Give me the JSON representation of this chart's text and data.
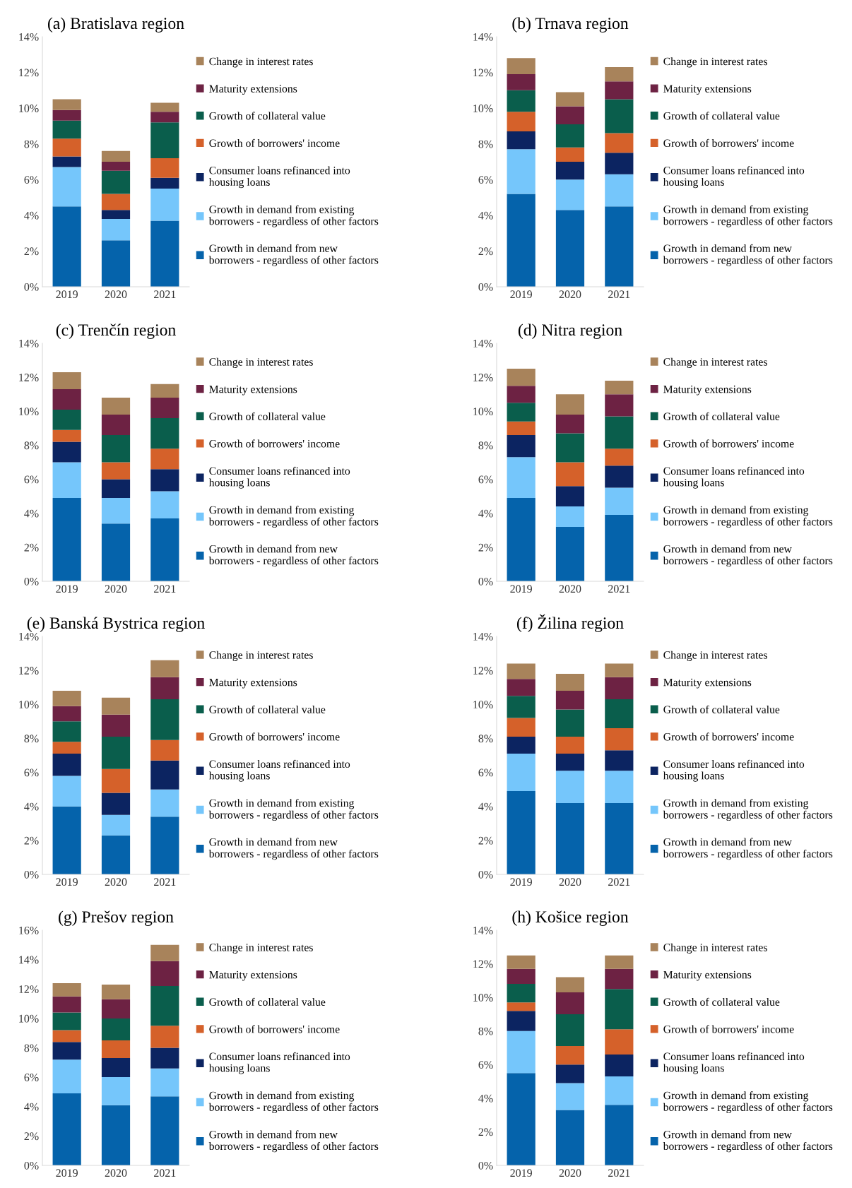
{
  "chart_data": [
    {
      "type": "bar",
      "stacked": true,
      "title": "(a) Bratislava region",
      "categories": [
        "2019",
        "2020",
        "2021"
      ],
      "ylim": [
        0,
        14
      ],
      "yticks": [
        {
          "value": 0,
          "label": "0%"
        },
        {
          "value": 2,
          "label": "2%"
        },
        {
          "value": 4,
          "label": "4%"
        },
        {
          "value": 6,
          "label": "6%"
        },
        {
          "value": 8,
          "label": "8%"
        },
        {
          "value": 10,
          "label": "10%"
        },
        {
          "value": 12,
          "label": "12%"
        },
        {
          "value": 14,
          "label": "14%"
        }
      ],
      "legend": "right",
      "grid": false,
      "series": [
        {
          "name": "Growth in demand from new\nborrowers - regardless of other factors",
          "color": "#0563ab",
          "values": [
            4.5,
            2.6,
            3.7
          ]
        },
        {
          "name": "Growth in demand from existing\nborrowers - regardless of other factors",
          "color": "#75c6fb",
          "values": [
            2.2,
            1.2,
            1.8
          ]
        },
        {
          "name": "Consumer loans refinanced into\nhousing loans",
          "color": "#0c2461",
          "values": [
            0.6,
            0.5,
            0.6
          ]
        },
        {
          "name": "Growth of borrowers' income",
          "color": "#d5612a",
          "values": [
            1.0,
            0.9,
            1.1
          ]
        },
        {
          "name": "Growth of collateral value",
          "color": "#0a5e4c",
          "values": [
            1.0,
            1.3,
            2.0
          ]
        },
        {
          "name": "Maturity extensions",
          "color": "#6d2243",
          "values": [
            0.6,
            0.5,
            0.6
          ]
        },
        {
          "name": "Change in interest rates",
          "color": "#a8835b",
          "values": [
            0.6,
            0.6,
            0.5
          ]
        }
      ]
    },
    {
      "type": "bar",
      "stacked": true,
      "title": "(b) Trnava region",
      "categories": [
        "2019",
        "2020",
        "2021"
      ],
      "ylim": [
        0,
        14
      ],
      "yticks": [
        {
          "value": 0,
          "label": "0%"
        },
        {
          "value": 2,
          "label": "2%"
        },
        {
          "value": 4,
          "label": "4%"
        },
        {
          "value": 6,
          "label": "6%"
        },
        {
          "value": 8,
          "label": "8%"
        },
        {
          "value": 10,
          "label": "10%"
        },
        {
          "value": 12,
          "label": "12%"
        },
        {
          "value": 14,
          "label": "14%"
        }
      ],
      "legend": "right",
      "grid": false,
      "series": [
        {
          "name": "Growth in demand from new\nborrowers - regardless of other factors",
          "color": "#0563ab",
          "values": [
            5.2,
            4.3,
            4.5
          ]
        },
        {
          "name": "Growth in demand from existing\nborrowers - regardless of other factors",
          "color": "#75c6fb",
          "values": [
            2.5,
            1.7,
            1.8
          ]
        },
        {
          "name": "Consumer loans refinanced into\nhousing loans",
          "color": "#0c2461",
          "values": [
            1.0,
            1.0,
            1.2
          ]
        },
        {
          "name": "Growth of borrowers' income",
          "color": "#d5612a",
          "values": [
            1.1,
            0.8,
            1.1
          ]
        },
        {
          "name": "Growth of collateral value",
          "color": "#0a5e4c",
          "values": [
            1.2,
            1.3,
            1.9
          ]
        },
        {
          "name": "Maturity extensions",
          "color": "#6d2243",
          "values": [
            0.9,
            1.0,
            1.0
          ]
        },
        {
          "name": "Change in interest rates",
          "color": "#a8835b",
          "values": [
            0.9,
            0.8,
            0.8
          ]
        }
      ]
    },
    {
      "type": "bar",
      "stacked": true,
      "title": "(c) Trenčín region",
      "categories": [
        "2019",
        "2020",
        "2021"
      ],
      "ylim": [
        0,
        14
      ],
      "yticks": [
        {
          "value": 0,
          "label": "0%"
        },
        {
          "value": 2,
          "label": "2%"
        },
        {
          "value": 4,
          "label": "4%"
        },
        {
          "value": 6,
          "label": "6%"
        },
        {
          "value": 8,
          "label": "8%"
        },
        {
          "value": 10,
          "label": "10%"
        },
        {
          "value": 12,
          "label": "12%"
        },
        {
          "value": 14,
          "label": "14%"
        }
      ],
      "legend": "right",
      "grid": false,
      "series": [
        {
          "name": "Growth in demand from new\nborrowers - regardless of other factors",
          "color": "#0563ab",
          "values": [
            4.9,
            3.4,
            3.7
          ]
        },
        {
          "name": "Growth in demand from existing\nborrowers - regardless of other factors",
          "color": "#75c6fb",
          "values": [
            2.1,
            1.5,
            1.6
          ]
        },
        {
          "name": "Consumer loans refinanced into\nhousing loans",
          "color": "#0c2461",
          "values": [
            1.2,
            1.1,
            1.3
          ]
        },
        {
          "name": "Growth of borrowers' income",
          "color": "#d5612a",
          "values": [
            0.7,
            1.0,
            1.2
          ]
        },
        {
          "name": "Growth of collateral value",
          "color": "#0a5e4c",
          "values": [
            1.2,
            1.6,
            1.8
          ]
        },
        {
          "name": "Maturity extensions",
          "color": "#6d2243",
          "values": [
            1.2,
            1.2,
            1.2
          ]
        },
        {
          "name": "Change in interest rates",
          "color": "#a8835b",
          "values": [
            1.0,
            1.0,
            0.8
          ]
        }
      ]
    },
    {
      "type": "bar",
      "stacked": true,
      "title": "(d) Nitra region",
      "categories": [
        "2019",
        "2020",
        "2021"
      ],
      "ylim": [
        0,
        14
      ],
      "yticks": [
        {
          "value": 0,
          "label": "0%"
        },
        {
          "value": 2,
          "label": "2%"
        },
        {
          "value": 4,
          "label": "4%"
        },
        {
          "value": 6,
          "label": "6%"
        },
        {
          "value": 8,
          "label": "8%"
        },
        {
          "value": 10,
          "label": "10%"
        },
        {
          "value": 12,
          "label": "12%"
        },
        {
          "value": 14,
          "label": "14%"
        }
      ],
      "legend": "right",
      "grid": false,
      "series": [
        {
          "name": "Growth in demand from new\nborrowers - regardless of other factors",
          "color": "#0563ab",
          "values": [
            4.9,
            3.2,
            3.9
          ]
        },
        {
          "name": "Growth in demand from existing\nborrowers - regardless of other factors",
          "color": "#75c6fb",
          "values": [
            2.4,
            1.2,
            1.6
          ]
        },
        {
          "name": "Consumer loans refinanced into\nhousing loans",
          "color": "#0c2461",
          "values": [
            1.3,
            1.2,
            1.3
          ]
        },
        {
          "name": "Growth of borrowers' income",
          "color": "#d5612a",
          "values": [
            0.8,
            1.4,
            1.0
          ]
        },
        {
          "name": "Growth of collateral value",
          "color": "#0a5e4c",
          "values": [
            1.1,
            1.7,
            1.9
          ]
        },
        {
          "name": "Maturity extensions",
          "color": "#6d2243",
          "values": [
            1.0,
            1.1,
            1.3
          ]
        },
        {
          "name": "Change in interest rates",
          "color": "#a8835b",
          "values": [
            1.0,
            1.2,
            0.8
          ]
        }
      ]
    },
    {
      "type": "bar",
      "stacked": true,
      "title": "(e) Banská Bystrica region",
      "categories": [
        "2019",
        "2020",
        "2021"
      ],
      "ylim": [
        0,
        14
      ],
      "yticks": [
        {
          "value": 0,
          "label": "0%"
        },
        {
          "value": 2,
          "label": "2%"
        },
        {
          "value": 4,
          "label": "4%"
        },
        {
          "value": 6,
          "label": "6%"
        },
        {
          "value": 8,
          "label": "8%"
        },
        {
          "value": 10,
          "label": "10%"
        },
        {
          "value": 12,
          "label": "12%"
        },
        {
          "value": 14,
          "label": "14%"
        }
      ],
      "legend": "right",
      "grid": false,
      "series": [
        {
          "name": "Growth in demand from new\nborrowers - regardless of other factors",
          "color": "#0563ab",
          "values": [
            4.0,
            2.3,
            3.4
          ]
        },
        {
          "name": "Growth in demand from existing\nborrowers - regardless of other factors",
          "color": "#75c6fb",
          "values": [
            1.8,
            1.2,
            1.6
          ]
        },
        {
          "name": "Consumer loans refinanced into\nhousing loans",
          "color": "#0c2461",
          "values": [
            1.3,
            1.3,
            1.7
          ]
        },
        {
          "name": "Growth of borrowers' income",
          "color": "#d5612a",
          "values": [
            0.7,
            1.4,
            1.2
          ]
        },
        {
          "name": "Growth of collateral value",
          "color": "#0a5e4c",
          "values": [
            1.2,
            1.9,
            2.4
          ]
        },
        {
          "name": "Maturity extensions",
          "color": "#6d2243",
          "values": [
            0.9,
            1.3,
            1.3
          ]
        },
        {
          "name": "Change in interest rates",
          "color": "#a8835b",
          "values": [
            0.9,
            1.0,
            1.0
          ]
        }
      ]
    },
    {
      "type": "bar",
      "stacked": true,
      "title": "(f) Žilina region",
      "categories": [
        "2019",
        "2020",
        "2021"
      ],
      "ylim": [
        0,
        14
      ],
      "yticks": [
        {
          "value": 0,
          "label": "0%"
        },
        {
          "value": 2,
          "label": "2%"
        },
        {
          "value": 4,
          "label": "4%"
        },
        {
          "value": 6,
          "label": "6%"
        },
        {
          "value": 8,
          "label": "8%"
        },
        {
          "value": 10,
          "label": "10%"
        },
        {
          "value": 12,
          "label": "12%"
        },
        {
          "value": 14,
          "label": "14%"
        }
      ],
      "legend": "right",
      "grid": false,
      "series": [
        {
          "name": "Growth in demand from new\nborrowers - regardless of other factors",
          "color": "#0563ab",
          "values": [
            4.9,
            4.2,
            4.2
          ]
        },
        {
          "name": "Growth in demand from existing\nborrowers - regardless of other factors",
          "color": "#75c6fb",
          "values": [
            2.2,
            1.9,
            1.9
          ]
        },
        {
          "name": "Consumer loans refinanced into\nhousing loans",
          "color": "#0c2461",
          "values": [
            1.0,
            1.0,
            1.2
          ]
        },
        {
          "name": "Growth of borrowers' income",
          "color": "#d5612a",
          "values": [
            1.1,
            1.0,
            1.3
          ]
        },
        {
          "name": "Growth of collateral value",
          "color": "#0a5e4c",
          "values": [
            1.3,
            1.6,
            1.7
          ]
        },
        {
          "name": "Maturity extensions",
          "color": "#6d2243",
          "values": [
            1.0,
            1.1,
            1.3
          ]
        },
        {
          "name": "Change in interest rates",
          "color": "#a8835b",
          "values": [
            0.9,
            1.0,
            0.8
          ]
        }
      ]
    },
    {
      "type": "bar",
      "stacked": true,
      "title": "(g) Prešov region",
      "categories": [
        "2019",
        "2020",
        "2021"
      ],
      "ylim": [
        0,
        16
      ],
      "yticks": [
        {
          "value": 0,
          "label": "0%"
        },
        {
          "value": 2,
          "label": "2%"
        },
        {
          "value": 4,
          "label": "4%"
        },
        {
          "value": 6,
          "label": "6%"
        },
        {
          "value": 8,
          "label": "8%"
        },
        {
          "value": 10,
          "label": "10%"
        },
        {
          "value": 12,
          "label": "12%"
        },
        {
          "value": 14,
          "label": "14%"
        },
        {
          "value": 16,
          "label": "16%"
        }
      ],
      "legend": "right",
      "grid": false,
      "series": [
        {
          "name": "Growth in demand from new\nborrowers - regardless of other factors",
          "color": "#0563ab",
          "values": [
            4.9,
            4.1,
            4.7
          ]
        },
        {
          "name": "Growth in demand from existing\nborrowers - regardless of other factors",
          "color": "#75c6fb",
          "values": [
            2.3,
            1.9,
            1.9
          ]
        },
        {
          "name": "Consumer loans refinanced into\nhousing loans",
          "color": "#0c2461",
          "values": [
            1.2,
            1.3,
            1.4
          ]
        },
        {
          "name": "Growth of borrowers' income",
          "color": "#d5612a",
          "values": [
            0.8,
            1.2,
            1.5
          ]
        },
        {
          "name": "Growth of collateral value",
          "color": "#0a5e4c",
          "values": [
            1.2,
            1.5,
            2.7
          ]
        },
        {
          "name": "Maturity extensions",
          "color": "#6d2243",
          "values": [
            1.1,
            1.3,
            1.7
          ]
        },
        {
          "name": "Change in interest rates",
          "color": "#a8835b",
          "values": [
            0.9,
            1.0,
            1.1
          ]
        }
      ]
    },
    {
      "type": "bar",
      "stacked": true,
      "title": "(h) Košice region",
      "categories": [
        "2019",
        "2020",
        "2021"
      ],
      "ylim": [
        0,
        14
      ],
      "yticks": [
        {
          "value": 0,
          "label": "0%"
        },
        {
          "value": 2,
          "label": "2%"
        },
        {
          "value": 4,
          "label": "4%"
        },
        {
          "value": 6,
          "label": "6%"
        },
        {
          "value": 8,
          "label": "8%"
        },
        {
          "value": 10,
          "label": "10%"
        },
        {
          "value": 12,
          "label": "12%"
        },
        {
          "value": 14,
          "label": "14%"
        }
      ],
      "legend": "right",
      "grid": false,
      "series": [
        {
          "name": "Growth in demand from new\nborrowers - regardless of other factors",
          "color": "#0563ab",
          "values": [
            5.5,
            3.3,
            3.6
          ]
        },
        {
          "name": "Growth in demand from existing\nborrowers - regardless of other factors",
          "color": "#75c6fb",
          "values": [
            2.5,
            1.6,
            1.7
          ]
        },
        {
          "name": "Consumer loans refinanced into\nhousing loans",
          "color": "#0c2461",
          "values": [
            1.2,
            1.1,
            1.3
          ]
        },
        {
          "name": "Growth of borrowers' income",
          "color": "#d5612a",
          "values": [
            0.5,
            1.1,
            1.5
          ]
        },
        {
          "name": "Growth of collateral value",
          "color": "#0a5e4c",
          "values": [
            1.1,
            1.9,
            2.4
          ]
        },
        {
          "name": "Maturity extensions",
          "color": "#6d2243",
          "values": [
            0.9,
            1.3,
            1.2
          ]
        },
        {
          "name": "Change in interest rates",
          "color": "#a8835b",
          "values": [
            0.8,
            0.9,
            0.8
          ]
        }
      ]
    }
  ]
}
